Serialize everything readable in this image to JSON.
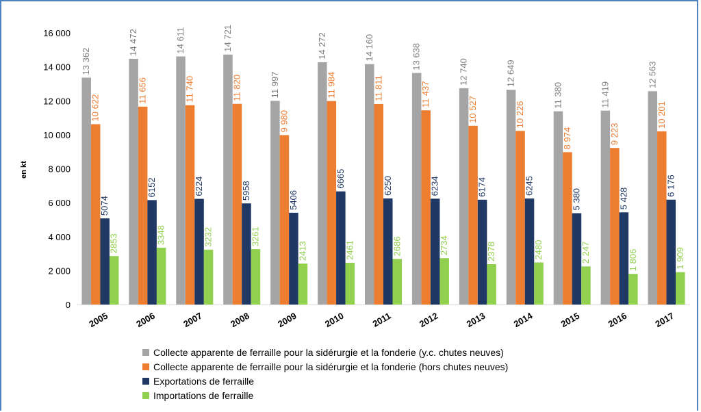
{
  "chart_data": {
    "type": "bar",
    "ylabel": "en kt",
    "ylim": [
      0,
      16000
    ],
    "yticks": [
      "0",
      "2 000",
      "4 000",
      "6 000",
      "8 000",
      "10 000",
      "12 000",
      "14 000",
      "16 000"
    ],
    "categories": [
      "2005",
      "2006",
      "2007",
      "2008",
      "2009",
      "2010",
      "2011",
      "2012",
      "2013",
      "2014",
      "2015",
      "2016",
      "2017"
    ],
    "legend_position": "bottom",
    "series": [
      {
        "name": "Collecte apparente de ferraille pour la sidérurgie et la fonderie (y.c. chutes neuves)",
        "color": "#a5a5a5",
        "label_color": "#7f7f7f",
        "values": [
          13362,
          14472,
          14611,
          14721,
          11997,
          14272,
          14160,
          13638,
          12740,
          12649,
          11380,
          11419,
          12563
        ],
        "labels": [
          "13 362",
          "14 472",
          "14 611",
          "14 721",
          "11 997",
          "14 272",
          "14 160",
          "13 638",
          "12 740",
          "12 649",
          "11 380",
          "11 419",
          "12 563"
        ]
      },
      {
        "name": "Collecte apparente de ferraille pour la sidérurgie et la fonderie (hors chutes neuves)",
        "color": "#ed7d31",
        "label_color": "#ed7d31",
        "values": [
          10622,
          11656,
          11740,
          11820,
          9980,
          11984,
          11811,
          11437,
          10527,
          10226,
          8974,
          9223,
          10201
        ],
        "labels": [
          "10 622",
          "11 656",
          "11 740",
          "11 820",
          "9 980",
          "11 984",
          "11 811",
          "11 437",
          "10 527",
          "10 226",
          "8 974",
          "9 223",
          "10 201"
        ]
      },
      {
        "name": "Exportations de ferraille",
        "color": "#1f3864",
        "label_color": "#1f3864",
        "values": [
          5074,
          6152,
          6224,
          5958,
          5406,
          6665,
          6250,
          6234,
          6174,
          6245,
          5380,
          5428,
          6176
        ],
        "labels": [
          "5074",
          "6152",
          "6224",
          "5958",
          "5406",
          "6665",
          "6250",
          "6234",
          "6174",
          "6245",
          "5 380",
          "5 428",
          "6 176"
        ]
      },
      {
        "name": "Importations de ferraille",
        "color": "#92d050",
        "label_color": "#92d050",
        "values": [
          2853,
          3348,
          3232,
          3261,
          2413,
          2461,
          2686,
          2734,
          2378,
          2480,
          2247,
          1806,
          1909
        ],
        "labels": [
          "2853",
          "3348",
          "3232",
          "3261",
          "2413",
          "2461",
          "2686",
          "2734",
          "2378",
          "2480",
          "2 247",
          "1 806",
          "1 909"
        ]
      }
    ]
  }
}
